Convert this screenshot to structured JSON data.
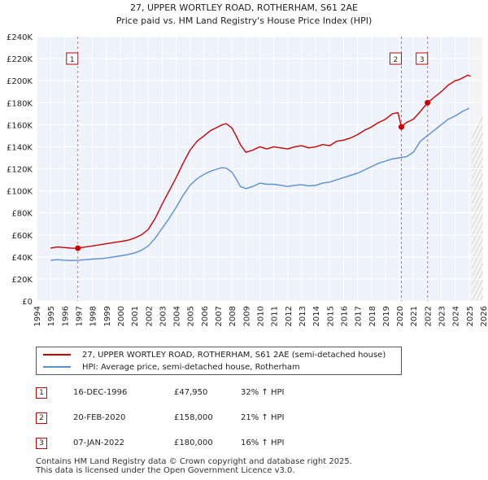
{
  "chart_data": {
    "type": "line",
    "title": "27, UPPER WORTLEY ROAD, ROTHERHAM, S61 2AE",
    "subtitle": "Price paid vs. HM Land Registry's House Price Index (HPI)",
    "xlim": [
      1994,
      2026
    ],
    "ylim": [
      0,
      240000
    ],
    "x_ticks": [
      "1994",
      "1995",
      "1996",
      "1997",
      "1998",
      "1999",
      "2000",
      "2001",
      "2002",
      "2003",
      "2004",
      "2005",
      "2006",
      "2007",
      "2008",
      "2009",
      "2010",
      "2011",
      "2012",
      "2013",
      "2014",
      "2015",
      "2016",
      "2017",
      "2018",
      "2019",
      "2020",
      "2021",
      "2022",
      "2023",
      "2024",
      "2025",
      "2026"
    ],
    "y_ticks": [
      {
        "value": 0,
        "label": "£0"
      },
      {
        "value": 20000,
        "label": "£20K"
      },
      {
        "value": 40000,
        "label": "£40K"
      },
      {
        "value": 60000,
        "label": "£60K"
      },
      {
        "value": 80000,
        "label": "£80K"
      },
      {
        "value": 100000,
        "label": "£100K"
      },
      {
        "value": 120000,
        "label": "£120K"
      },
      {
        "value": 140000,
        "label": "£140K"
      },
      {
        "value": 160000,
        "label": "£160K"
      },
      {
        "value": 180000,
        "label": "£180K"
      },
      {
        "value": 200000,
        "label": "£200K"
      },
      {
        "value": 220000,
        "label": "£220K"
      },
      {
        "value": 240000,
        "label": "£240K"
      }
    ],
    "grid": true,
    "series": [
      {
        "name": "27, UPPER WORTLEY ROAD, ROTHERHAM, S61 2AE (semi-detached house)",
        "color": "#cc0000",
        "x": [
          1995.0,
          1995.5,
          1996.0,
          1996.5,
          1996.96,
          1997.5,
          1998.0,
          1998.5,
          1999.0,
          1999.5,
          2000.0,
          2000.5,
          2001.0,
          2001.5,
          2002.0,
          2002.5,
          2003.0,
          2003.5,
          2004.0,
          2004.5,
          2005.0,
          2005.5,
          2006.0,
          2006.5,
          2007.0,
          2007.3,
          2007.6,
          2008.0,
          2008.3,
          2008.6,
          2009.0,
          2009.5,
          2010.0,
          2010.5,
          2011.0,
          2011.5,
          2012.0,
          2012.5,
          2013.0,
          2013.5,
          2014.0,
          2014.5,
          2015.0,
          2015.5,
          2016.0,
          2016.5,
          2017.0,
          2017.5,
          2018.0,
          2018.5,
          2019.0,
          2019.5,
          2019.9,
          2020.14,
          2020.5,
          2021.0,
          2021.5,
          2022.02,
          2022.5,
          2023.0,
          2023.5,
          2024.0,
          2024.3,
          2024.6,
          2024.9,
          2025.1
        ],
        "values": [
          48000,
          49000,
          48500,
          48000,
          47950,
          49000,
          50000,
          51000,
          52000,
          53000,
          54000,
          55000,
          57000,
          60000,
          65000,
          75000,
          88000,
          100000,
          112000,
          125000,
          137000,
          145000,
          150000,
          155000,
          158000,
          160000,
          161000,
          157000,
          150000,
          142000,
          135000,
          137000,
          140000,
          138000,
          140000,
          139000,
          138000,
          140000,
          141000,
          139000,
          140000,
          142000,
          141000,
          145000,
          146000,
          148000,
          151000,
          155000,
          158000,
          162000,
          165000,
          170000,
          171000,
          158000,
          162000,
          165000,
          172000,
          180000,
          185000,
          190000,
          196000,
          200000,
          201000,
          203000,
          205000,
          204000
        ]
      },
      {
        "name": "HPI: Average price, semi-detached house, Rotherham",
        "color": "#5b8fd0",
        "x": [
          1995.0,
          1995.5,
          1996.0,
          1996.5,
          1997.0,
          1997.5,
          1998.0,
          1998.5,
          1999.0,
          1999.5,
          2000.0,
          2000.5,
          2001.0,
          2001.5,
          2002.0,
          2002.5,
          2003.0,
          2003.5,
          2004.0,
          2004.5,
          2005.0,
          2005.5,
          2006.0,
          2006.5,
          2007.0,
          2007.3,
          2007.6,
          2008.0,
          2008.3,
          2008.6,
          2009.0,
          2009.5,
          2010.0,
          2010.5,
          2011.0,
          2011.5,
          2012.0,
          2012.5,
          2013.0,
          2013.5,
          2014.0,
          2014.5,
          2015.0,
          2015.5,
          2016.0,
          2016.5,
          2017.0,
          2017.5,
          2018.0,
          2018.5,
          2019.0,
          2019.5,
          2020.0,
          2020.5,
          2021.0,
          2021.5,
          2022.0,
          2022.5,
          2023.0,
          2023.5,
          2024.0,
          2024.5,
          2025.0
        ],
        "values": [
          37000,
          37500,
          37000,
          36800,
          37000,
          37500,
          38000,
          38500,
          39000,
          40000,
          41000,
          42000,
          43500,
          46000,
          50000,
          57000,
          66000,
          75000,
          85000,
          96000,
          105000,
          111000,
          115000,
          118000,
          120000,
          121000,
          120500,
          117000,
          111000,
          104000,
          102000,
          104000,
          107000,
          106000,
          106000,
          105000,
          104000,
          105000,
          105500,
          104500,
          105000,
          107000,
          108000,
          110000,
          112000,
          114000,
          116000,
          119000,
          122000,
          125000,
          127000,
          129000,
          130000,
          131000,
          135000,
          145000,
          150000,
          155000,
          160000,
          165000,
          168000,
          172000,
          175000
        ]
      }
    ],
    "markers": [
      {
        "id": "1",
        "x": 1996.96,
        "value": 47950
      },
      {
        "id": "2",
        "x": 2020.14,
        "value": 158000
      },
      {
        "id": "3",
        "x": 2022.02,
        "value": 180000
      }
    ]
  },
  "legend": {
    "items": [
      {
        "label": "27, UPPER WORTLEY ROAD, ROTHERHAM, S61 2AE (semi-detached house)",
        "color": "#cc0000"
      },
      {
        "label": "HPI: Average price, semi-detached house, Rotherham",
        "color": "#5b8fd0"
      }
    ]
  },
  "transactions": [
    {
      "id": "1",
      "date": "16-DEC-1996",
      "price": "£47,950",
      "hpi": "32% ↑ HPI"
    },
    {
      "id": "2",
      "date": "20-FEB-2020",
      "price": "£158,000",
      "hpi": "21% ↑ HPI"
    },
    {
      "id": "3",
      "date": "07-JAN-2022",
      "price": "£180,000",
      "hpi": "16% ↑ HPI"
    }
  ],
  "footer": {
    "line1": "Contains HM Land Registry data © Crown copyright and database right 2025.",
    "line2": "This data is licensed under the Open Government Licence v3.0."
  }
}
